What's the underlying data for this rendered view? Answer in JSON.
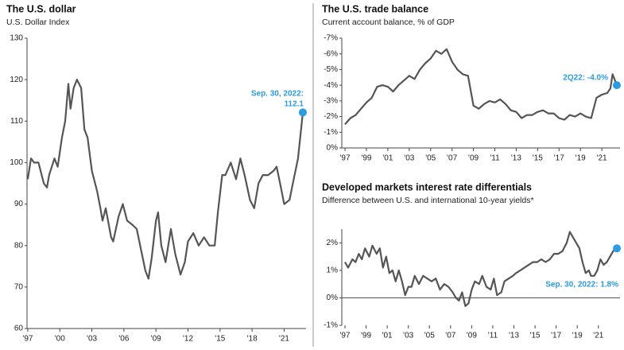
{
  "chart_data": [
    {
      "type": "line",
      "title": "The U.S. dollar",
      "subtitle": "U.S. Dollar Index",
      "color": "#555555",
      "highlight_color": "#2b9be2",
      "x": [
        1997.0,
        1997.3,
        1997.6,
        1998.0,
        1998.5,
        1998.8,
        1999.0,
        1999.5,
        1999.8,
        2000.2,
        2000.5,
        2000.8,
        2001.0,
        2001.3,
        2001.6,
        2002.0,
        2002.3,
        2002.6,
        2003.0,
        2003.5,
        2003.8,
        2004.0,
        2004.3,
        2004.8,
        2005.0,
        2005.5,
        2005.9,
        2006.3,
        2006.8,
        2007.2,
        2007.6,
        2008.0,
        2008.3,
        2008.6,
        2009.0,
        2009.2,
        2009.5,
        2009.9,
        2010.4,
        2010.8,
        2011.3,
        2011.7,
        2012.0,
        2012.5,
        2013.0,
        2013.5,
        2014.0,
        2014.5,
        2014.8,
        2015.2,
        2015.5,
        2016.0,
        2016.5,
        2016.9,
        2017.3,
        2017.8,
        2018.2,
        2018.6,
        2019.0,
        2019.5,
        2020.0,
        2020.3,
        2020.7,
        2021.0,
        2021.5,
        2021.9,
        2022.3,
        2022.75
      ],
      "values": [
        96,
        101,
        100,
        100,
        95,
        94,
        97,
        101,
        99,
        106,
        110,
        119,
        113,
        118,
        120,
        118,
        108,
        106,
        98,
        93,
        89,
        86,
        89,
        82,
        81,
        87,
        90,
        86,
        85,
        84,
        79,
        74,
        72,
        77,
        86,
        88,
        80,
        76,
        84,
        78,
        73,
        76,
        81,
        83,
        80,
        82,
        80,
        80,
        88,
        97,
        97,
        100,
        96,
        101,
        97,
        91,
        89,
        95,
        97,
        97,
        98,
        99,
        94,
        90,
        91,
        96,
        101,
        112.1
      ],
      "xlim": [
        1996.93,
        2023.05
      ],
      "ylim": [
        60,
        130
      ],
      "yticks": [
        60,
        70,
        80,
        90,
        100,
        110,
        120,
        130
      ],
      "xticks": [
        {
          "value": 1997,
          "label": "'97"
        },
        {
          "value": 2000,
          "label": "'00"
        },
        {
          "value": 2003,
          "label": "'03"
        },
        {
          "value": 2006,
          "label": "'06"
        },
        {
          "value": 2009,
          "label": "'09"
        },
        {
          "value": 2012,
          "label": "'12"
        },
        {
          "value": 2015,
          "label": "'15"
        },
        {
          "value": 2018,
          "label": "'18"
        },
        {
          "value": 2021,
          "label": "'21"
        }
      ],
      "annotation": [
        "Sep. 30, 2022:",
        "112.1"
      ]
    },
    {
      "type": "line",
      "title": "The U.S. trade balance",
      "subtitle": "Current account balance, % of GDP",
      "color": "#555555",
      "highlight_color": "#2b9be2",
      "x": [
        1997.0,
        1997.5,
        1998.0,
        1998.5,
        1999.0,
        1999.5,
        2000.0,
        2000.5,
        2001.0,
        2001.5,
        2002.0,
        2002.5,
        2003.0,
        2003.5,
        2004.0,
        2004.5,
        2005.0,
        2005.5,
        2006.0,
        2006.5,
        2007.0,
        2007.5,
        2008.0,
        2008.5,
        2009.0,
        2009.5,
        2010.0,
        2010.5,
        2011.0,
        2011.5,
        2012.0,
        2012.5,
        2013.0,
        2013.5,
        2014.0,
        2014.5,
        2015.0,
        2015.5,
        2016.0,
        2016.5,
        2017.0,
        2017.5,
        2018.0,
        2018.5,
        2019.0,
        2019.5,
        2020.0,
        2020.5,
        2021.0,
        2021.5,
        2021.8,
        2022.0,
        2022.4
      ],
      "values": [
        -1.5,
        -1.9,
        -2.1,
        -2.5,
        -2.9,
        -3.2,
        -3.9,
        -4.0,
        -3.9,
        -3.6,
        -4.0,
        -4.3,
        -4.6,
        -4.4,
        -5.0,
        -5.4,
        -5.7,
        -6.2,
        -6.0,
        -6.3,
        -5.5,
        -5.0,
        -4.7,
        -4.6,
        -2.7,
        -2.5,
        -2.8,
        -3.0,
        -2.9,
        -3.1,
        -2.8,
        -2.4,
        -2.3,
        -1.9,
        -2.1,
        -2.1,
        -2.3,
        -2.4,
        -2.2,
        -2.2,
        -1.9,
        -1.8,
        -2.1,
        -2.0,
        -2.2,
        -2.0,
        -1.9,
        -3.2,
        -3.4,
        -3.5,
        -3.8,
        -4.7,
        -4.0
      ],
      "xlim": [
        1996.7,
        2022.7
      ],
      "ylim": [
        0,
        -7
      ],
      "yticks": [
        {
          "value": 0,
          "label": "0%"
        },
        {
          "value": -1,
          "label": "-1%"
        },
        {
          "value": -2,
          "label": "-2%"
        },
        {
          "value": -3,
          "label": "-3%"
        },
        {
          "value": -4,
          "label": "-4%"
        },
        {
          "value": -5,
          "label": "-5%"
        },
        {
          "value": -6,
          "label": "-6%"
        },
        {
          "value": -7,
          "label": "-7%"
        }
      ],
      "xticks": [
        {
          "value": 1997,
          "label": "'97"
        },
        {
          "value": 1999,
          "label": "'99"
        },
        {
          "value": 2001,
          "label": "'01"
        },
        {
          "value": 2003,
          "label": "'03"
        },
        {
          "value": 2005,
          "label": "'05"
        },
        {
          "value": 2007,
          "label": "'07"
        },
        {
          "value": 2009,
          "label": "'09"
        },
        {
          "value": 2011,
          "label": "'11"
        },
        {
          "value": 2013,
          "label": "'13"
        },
        {
          "value": 2015,
          "label": "'15"
        },
        {
          "value": 2017,
          "label": "'17"
        },
        {
          "value": 2019,
          "label": "'19"
        },
        {
          "value": 2021,
          "label": "'21"
        }
      ],
      "annotation": [
        "2Q22: -4.0%"
      ]
    },
    {
      "type": "line",
      "title": "Developed markets interest rate differentials",
      "subtitle": "Difference between U.S. and international 10-year yields*",
      "color": "#555555",
      "highlight_color": "#2b9be2",
      "x": [
        1997.0,
        1997.3,
        1997.7,
        1998.0,
        1998.3,
        1998.6,
        1998.9,
        1999.3,
        1999.6,
        2000.0,
        2000.3,
        2000.6,
        2000.9,
        2001.2,
        2001.5,
        2001.8,
        2002.1,
        2002.4,
        2002.7,
        2003.0,
        2003.3,
        2003.6,
        2004.0,
        2004.4,
        2004.8,
        2005.2,
        2005.6,
        2006.0,
        2006.4,
        2006.8,
        2007.2,
        2007.5,
        2007.8,
        2008.1,
        2008.4,
        2008.7,
        2009.0,
        2009.3,
        2009.7,
        2010.0,
        2010.4,
        2010.8,
        2011.1,
        2011.4,
        2011.8,
        2012.1,
        2012.5,
        2012.9,
        2013.2,
        2013.6,
        2014.0,
        2014.4,
        2014.8,
        2015.2,
        2015.6,
        2016.0,
        2016.4,
        2016.8,
        2017.2,
        2017.6,
        2018.0,
        2018.3,
        2018.6,
        2018.9,
        2019.2,
        2019.5,
        2019.8,
        2020.1,
        2020.3,
        2020.6,
        2020.9,
        2021.2,
        2021.5,
        2021.8,
        2022.1,
        2022.4,
        2022.75
      ],
      "values": [
        1.3,
        1.1,
        1.4,
        1.3,
        1.6,
        1.4,
        1.8,
        1.5,
        1.9,
        1.6,
        1.8,
        1.1,
        1.5,
        0.9,
        1.0,
        0.6,
        1.0,
        0.6,
        0.1,
        0.4,
        0.4,
        0.8,
        0.5,
        0.8,
        0.7,
        0.6,
        0.7,
        0.3,
        0.5,
        0.4,
        0.2,
        0.0,
        -0.1,
        0.2,
        -0.3,
        -0.2,
        0.3,
        0.6,
        0.5,
        0.8,
        0.4,
        0.3,
        0.7,
        0.1,
        0.2,
        0.6,
        0.7,
        0.8,
        0.9,
        1.0,
        1.1,
        1.2,
        1.3,
        1.3,
        1.4,
        1.3,
        1.4,
        1.6,
        1.6,
        1.7,
        2.0,
        2.4,
        2.2,
        2.0,
        1.8,
        1.3,
        0.9,
        1.0,
        0.8,
        0.8,
        1.0,
        1.4,
        1.2,
        1.3,
        1.5,
        1.7,
        1.8
      ],
      "xlim": [
        1996.7,
        2023.05
      ],
      "ylim": [
        -1,
        2.5
      ],
      "yticks": [
        {
          "value": -1,
          "label": "-1%"
        },
        {
          "value": 0,
          "label": "0%"
        },
        {
          "value": 1,
          "label": "1%"
        },
        {
          "value": 2,
          "label": "2%"
        }
      ],
      "xticks": [
        {
          "value": 1997,
          "label": "'97"
        },
        {
          "value": 1999,
          "label": "'99"
        },
        {
          "value": 2001,
          "label": "'01"
        },
        {
          "value": 2003,
          "label": "'03"
        },
        {
          "value": 2005,
          "label": "'05"
        },
        {
          "value": 2007,
          "label": "'07"
        },
        {
          "value": 2009,
          "label": "'09"
        },
        {
          "value": 2011,
          "label": "'11"
        },
        {
          "value": 2013,
          "label": "'13"
        },
        {
          "value": 2015,
          "label": "'15"
        },
        {
          "value": 2017,
          "label": "'17"
        },
        {
          "value": 2019,
          "label": "'19"
        },
        {
          "value": 2021,
          "label": "'21"
        }
      ],
      "annotation": [
        "Sep. 30, 2022: 1.8%"
      ]
    }
  ]
}
